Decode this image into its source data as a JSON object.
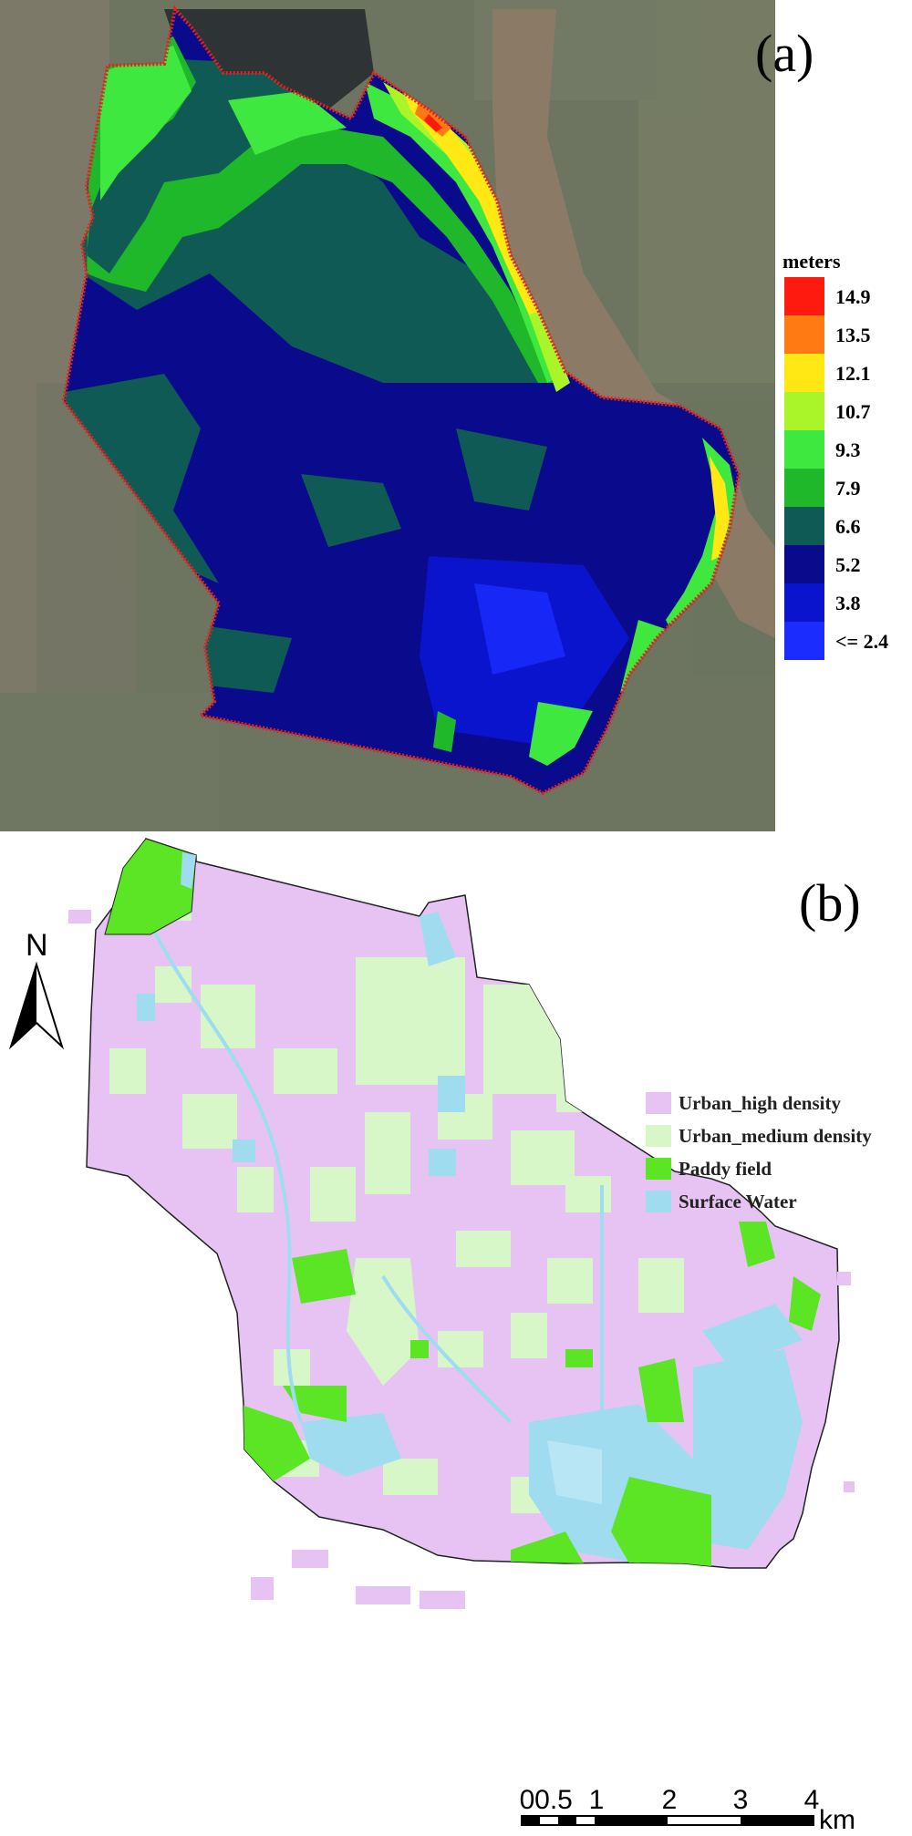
{
  "panel_a": {
    "label": "(a)",
    "legend": {
      "title": "meters",
      "classes": [
        {
          "label": "14.9",
          "color": "#ff1a10"
        },
        {
          "label": "13.5",
          "color": "#ff7a12"
        },
        {
          "label": "12.1",
          "color": "#ffe814"
        },
        {
          "label": "10.7",
          "color": "#aaf52a"
        },
        {
          "label": "9.3",
          "color": "#3fe83f"
        },
        {
          "label": "7.9",
          "color": "#1fb82a"
        },
        {
          "label": "6.6",
          "color": "#0f5a54"
        },
        {
          "label": "5.2",
          "color": "#0a0a8c"
        },
        {
          "label": "3.8",
          "color": "#0a14cc"
        },
        {
          "label": "<= 2.4",
          "color": "#1a2cff"
        }
      ]
    }
  },
  "panel_b": {
    "label": "(b)",
    "north_label": "N",
    "legend": [
      {
        "label": "Urban_high density",
        "color": "#e6c3f3"
      },
      {
        "label": "Urban_medium density",
        "color": "#d8f7c8"
      },
      {
        "label": "Paddy field",
        "color": "#5be524"
      },
      {
        "label": "Surface Water",
        "color": "#9fdcf0"
      }
    ],
    "scale_bar": {
      "ticks": [
        "0",
        "0.5",
        "1",
        "2",
        "3",
        "4"
      ],
      "unit": "km"
    }
  }
}
